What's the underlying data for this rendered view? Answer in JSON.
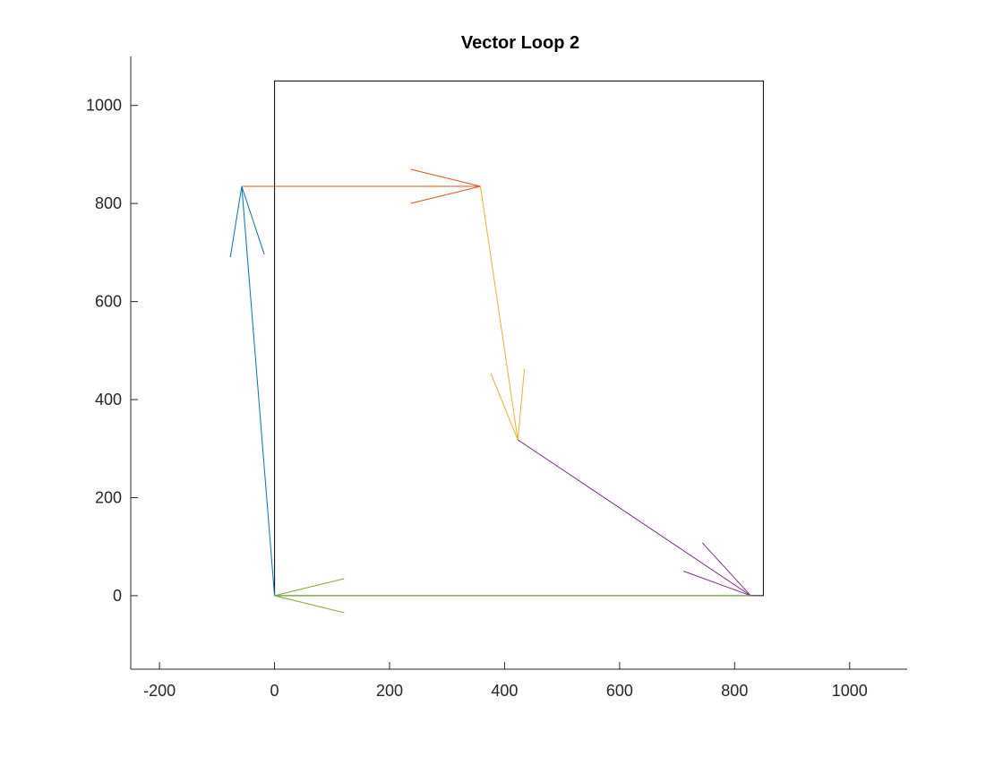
{
  "chart_data": {
    "type": "line",
    "title": "Vector Loop 2",
    "xlabel": "",
    "ylabel": "",
    "xlim": [
      -250,
      1100
    ],
    "ylim": [
      -150,
      1100
    ],
    "x_ticks": [
      -200,
      0,
      200,
      400,
      600,
      800,
      1000
    ],
    "y_ticks": [
      0,
      200,
      400,
      600,
      800,
      1000
    ],
    "x_tick_labels": [
      "-200",
      "0",
      "200",
      "400",
      "600",
      "800",
      "1000"
    ],
    "y_tick_labels": [
      "0",
      "200",
      "400",
      "600",
      "800",
      "1000"
    ],
    "grid": false,
    "legend": false,
    "box": {
      "x": [
        0,
        850,
        850,
        0,
        0
      ],
      "y": [
        0,
        0,
        1050,
        1050,
        0
      ],
      "color": "#000000"
    },
    "vectors": [
      {
        "x0": 0,
        "y0": 0,
        "x1": -57,
        "y1": 835,
        "color": "#0072BD"
      },
      {
        "x0": -57,
        "y0": 835,
        "x1": 358,
        "y1": 835,
        "color": "#D95319"
      },
      {
        "x0": 358,
        "y0": 835,
        "x1": 423,
        "y1": 318,
        "color": "#EDB120"
      },
      {
        "x0": 423,
        "y0": 318,
        "x1": 828,
        "y1": 0,
        "color": "#7E2F8E"
      },
      {
        "x0": 828,
        "y0": 0,
        "x1": 0,
        "y1": 0,
        "color": "#77AC30"
      }
    ]
  }
}
